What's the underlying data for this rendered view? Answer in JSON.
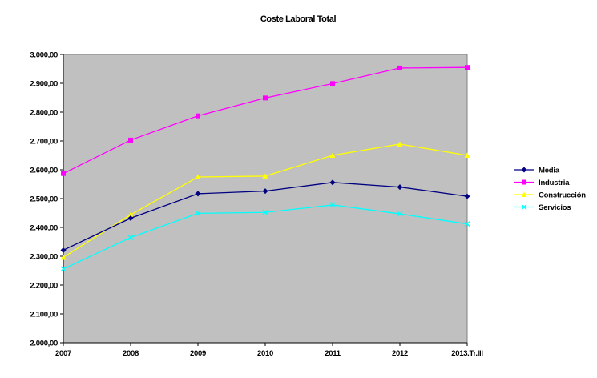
{
  "chart_data": {
    "type": "line",
    "title": "Coste Laboral Total",
    "xlabel": "",
    "ylabel": "",
    "categories": [
      "2007",
      "2008",
      "2009",
      "2010",
      "2011",
      "2012",
      "2013.Tr.III"
    ],
    "ylim": [
      2000,
      3000
    ],
    "ytick_values": [
      2000,
      2100,
      2200,
      2300,
      2400,
      2500,
      2600,
      2700,
      2800,
      2900,
      3000
    ],
    "ytick_labels": [
      "2.000,00",
      "2.100,00",
      "2.200,00",
      "2.300,00",
      "2.400,00",
      "2.500,00",
      "2.600,00",
      "2.700,00",
      "2.800,00",
      "2.900,00",
      "3.000,00"
    ],
    "grid": false,
    "plot_background": "#c0c0c0",
    "legend_position": "right",
    "series": [
      {
        "name": "Media",
        "color": "#000080",
        "marker": "diamond",
        "values": [
          2321,
          2432,
          2517,
          2526,
          2556,
          2540,
          2508
        ]
      },
      {
        "name": "Industria",
        "color": "#ff00ff",
        "marker": "square",
        "values": [
          2587,
          2703,
          2787,
          2849,
          2899,
          2953,
          2955
        ]
      },
      {
        "name": "Construcción",
        "color": "#ffff00",
        "marker": "triangle",
        "values": [
          2296,
          2444,
          2575,
          2578,
          2650,
          2689,
          2650
        ]
      },
      {
        "name": "Servicios",
        "color": "#00ffff",
        "marker": "x",
        "values": [
          2256,
          2365,
          2449,
          2452,
          2478,
          2447,
          2412
        ]
      }
    ]
  }
}
